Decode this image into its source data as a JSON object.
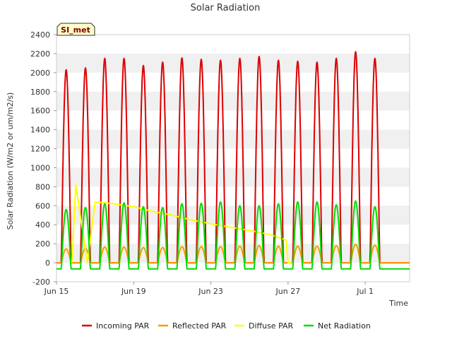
{
  "chart_data": {
    "type": "line",
    "title": "Solar Radiation",
    "xlabel": "Time",
    "ylabel": "Solar Radiation (W/m2 or um/m2/s)",
    "badge": "SI_met",
    "xlim": [
      15.0,
      33.3
    ],
    "ylim": [
      -200,
      2400
    ],
    "yticks": [
      -200,
      0,
      200,
      400,
      600,
      800,
      1000,
      1200,
      1400,
      1600,
      1800,
      2000,
      2200,
      2400
    ],
    "xticks": [
      {
        "value": 15,
        "label": "Jun 15"
      },
      {
        "value": 19,
        "label": "Jun 19"
      },
      {
        "value": 23,
        "label": "Jun 23"
      },
      {
        "value": 27,
        "label": "Jun 27"
      },
      {
        "value": 31,
        "label": "Jul 1"
      }
    ],
    "days": [
      15,
      16,
      17,
      18,
      19,
      20,
      21,
      22,
      23,
      24,
      25,
      26,
      27,
      28,
      29,
      30,
      31,
      32
    ],
    "series": [
      {
        "name": "Incoming PAR",
        "color": "#dd0000",
        "kind": "daily",
        "night": 0,
        "peaks": [
          2030,
          2050,
          2150,
          2150,
          2075,
          2110,
          2155,
          2140,
          2130,
          2150,
          2170,
          2130,
          2120,
          2110,
          2150,
          2220,
          2150,
          0
        ]
      },
      {
        "name": "Reflected PAR",
        "color": "#ff9900",
        "kind": "daily",
        "night": 0,
        "peaks": [
          145,
          150,
          165,
          165,
          160,
          160,
          170,
          170,
          170,
          175,
          180,
          175,
          175,
          175,
          180,
          195,
          185,
          0
        ]
      },
      {
        "name": "Diffuse PAR",
        "color": "#ffff00",
        "kind": "points",
        "x": [
          15.8,
          16.0,
          16.6,
          17.0,
          18.0,
          19.0,
          20.0,
          21.0,
          22.0,
          23.0,
          24.0,
          25.0,
          26.0,
          26.9,
          27.0,
          27.2
        ],
        "y": [
          0,
          820,
          0,
          640,
          620,
          590,
          540,
          500,
          450,
          410,
          375,
          340,
          300,
          240,
          0,
          0
        ]
      },
      {
        "name": "Net Radiation",
        "color": "#00dd00",
        "kind": "daily",
        "night": -65,
        "peaks": [
          560,
          580,
          620,
          630,
          590,
          580,
          620,
          625,
          640,
          600,
          600,
          620,
          640,
          640,
          610,
          650,
          590,
          0
        ]
      }
    ]
  }
}
